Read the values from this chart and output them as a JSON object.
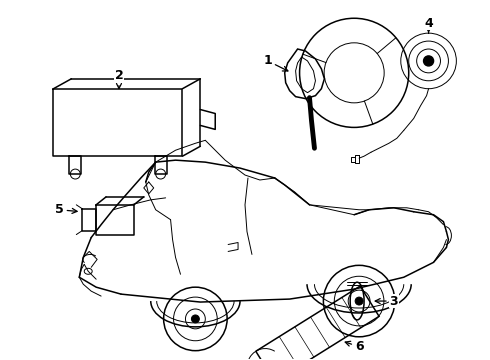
{
  "background_color": "#ffffff",
  "fig_width": 4.9,
  "fig_height": 3.6,
  "dpi": 100,
  "lw_main": 1.1,
  "lw_thin": 0.7,
  "label_fontsize": 9
}
